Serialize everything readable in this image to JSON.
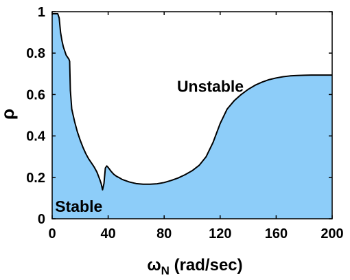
{
  "chart_data": {
    "type": "area",
    "xlabel_main": "ω",
    "xlabel_sub": "N",
    "xlabel_units": " (rad/sec)",
    "ylabel": "ρ",
    "xlim": [
      0,
      200
    ],
    "ylim": [
      0,
      1
    ],
    "xticks": [
      0,
      40,
      80,
      120,
      160,
      200
    ],
    "yticks": [
      0,
      0.2,
      0.4,
      0.6,
      0.8,
      1
    ],
    "xtick_labels": [
      "0",
      "40",
      "80",
      "120",
      "160",
      "200"
    ],
    "ytick_labels": [
      "0",
      "0.2",
      "0.4",
      "0.6",
      "0.8",
      "1"
    ],
    "grid": false,
    "fill_color": "#8dcdf9",
    "line_color": "#000000",
    "annotations": [
      {
        "text": "Unstable",
        "x": 113,
        "y": 0.64
      },
      {
        "text": "Stable",
        "x": 19,
        "y": 0.06
      }
    ],
    "series": [
      {
        "x": [
          0,
          1,
          2,
          4,
          5,
          6,
          7,
          8,
          9,
          10,
          11,
          12,
          12.5,
          13,
          14,
          16,
          18,
          20,
          22,
          24,
          26,
          28,
          30,
          32,
          34,
          35,
          36,
          37,
          38,
          39,
          40,
          42,
          44,
          46,
          48,
          50,
          55,
          60,
          65,
          70,
          75,
          80,
          85,
          90,
          95,
          100,
          105,
          110,
          115,
          120,
          125,
          130,
          135,
          140,
          145,
          150,
          155,
          160,
          165,
          170,
          175,
          180,
          185,
          190,
          195,
          200
        ],
        "y": [
          0.99,
          0.99,
          0.99,
          0.99,
          0.97,
          0.9,
          0.86,
          0.83,
          0.81,
          0.79,
          0.78,
          0.77,
          0.76,
          0.62,
          0.53,
          0.47,
          0.42,
          0.38,
          0.345,
          0.315,
          0.29,
          0.27,
          0.25,
          0.225,
          0.19,
          0.17,
          0.14,
          0.17,
          0.245,
          0.255,
          0.248,
          0.23,
          0.215,
          0.205,
          0.198,
          0.19,
          0.178,
          0.17,
          0.167,
          0.167,
          0.169,
          0.175,
          0.185,
          0.197,
          0.213,
          0.232,
          0.258,
          0.3,
          0.37,
          0.46,
          0.53,
          0.57,
          0.6,
          0.625,
          0.645,
          0.66,
          0.672,
          0.68,
          0.686,
          0.69,
          0.692,
          0.693,
          0.694,
          0.694,
          0.694,
          0.694
        ]
      }
    ]
  }
}
